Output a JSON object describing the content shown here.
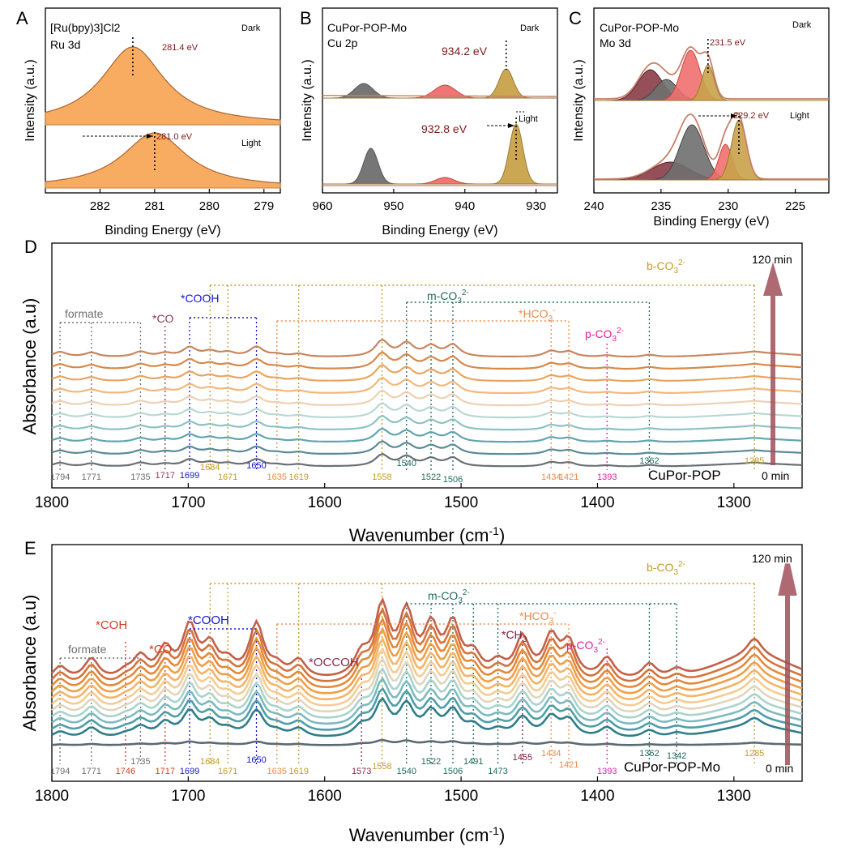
{
  "chart_data": [
    {
      "panel": "A",
      "type": "area",
      "title": "[Ru(bpy)3]Cl2",
      "subtitle": "Ru 3d",
      "xlabel": "Binding Energy (eV)",
      "ylabel": "Intensity (a.u.)",
      "xlim": [
        283.0,
        278.7
      ],
      "xticks": [
        "282",
        "281",
        "280",
        "279"
      ],
      "states": [
        {
          "name": "Dark",
          "peak": 281.4,
          "peak_label": "281.4 eV"
        },
        {
          "name": "Light",
          "peak": 281.0,
          "peak_label": "281.0 eV"
        }
      ],
      "colors": {
        "fill": "#f7a85a",
        "line": "#c5804b"
      }
    },
    {
      "panel": "B",
      "type": "area",
      "title": "CuPor-POP-Mo",
      "subtitle": "Cu 2p",
      "xlabel": "Binding Energy (eV)",
      "ylabel": "Intensity (a.u.)",
      "xlim": [
        960,
        927
      ],
      "xticks": [
        "960",
        "950",
        "940",
        "930"
      ],
      "states": [
        {
          "name": "Dark",
          "peaks": [
            954.2,
            942.8,
            934.2
          ],
          "peak_label": "934.2 eV"
        },
        {
          "name": "Light",
          "peaks": [
            953.2,
            942.8,
            932.8
          ],
          "peak_label": "932.8 eV"
        }
      ],
      "colors": {
        "gray": "#6f6f6f",
        "red": "#ef6f6f",
        "gold": "#c9a24a"
      }
    },
    {
      "panel": "C",
      "type": "area",
      "title": "CuPor-POP-Mo",
      "subtitle": "Mo 3d",
      "xlabel": "Binding Energy (eV)",
      "ylabel": "Intensity (a.u.)",
      "xlim": [
        240,
        222.5
      ],
      "xticks": [
        "240",
        "235",
        "230",
        "225"
      ],
      "states": [
        {
          "name": "Dark",
          "peaks": [
            235.8,
            234.6,
            232.8,
            231.5
          ],
          "peak_label": "231.5 eV"
        },
        {
          "name": "Light",
          "peaks": [
            234.3,
            232.7,
            230.2,
            229.2
          ],
          "peak_label": "229.2 eV"
        }
      ],
      "colors": {
        "maroon": "#8a3c47",
        "gray": "#6f6f6f",
        "red": "#ef6f6f",
        "gold": "#c9a24a",
        "envelope": "#c5806a"
      }
    },
    {
      "panel": "D",
      "type": "line",
      "sample": "CuPor-POP",
      "xlabel": "Wavenumber (cm",
      "xlabel_sup": "-1",
      "xlabel_end": ")",
      "ylabel": "Absorbance (a.u)",
      "xlim": [
        1800,
        1250
      ],
      "xticks": [
        "1800",
        "1700",
        "1600",
        "1500",
        "1400",
        "1300"
      ],
      "time_start": "0 min",
      "time_end": "120 min",
      "n_series": 10,
      "peaks": [
        1794,
        1771,
        1735,
        1717,
        1699,
        1684,
        1671,
        1650,
        1635,
        1619,
        1558,
        1540,
        1522,
        1506,
        1434,
        1421,
        1393,
        1362,
        1285
      ],
      "groups": [
        {
          "name": "formate",
          "peaks": [
            1794,
            1771,
            1735
          ],
          "color": "#6f6f6f"
        },
        {
          "name": "*CO",
          "peaks": [
            1717
          ],
          "color": "#8a3c55"
        },
        {
          "name": "*COOH",
          "peaks": [
            1699,
            1650
          ],
          "color": "#1515d0"
        },
        {
          "name": "b-CO",
          "sub": "3",
          "sup": "2-",
          "peaks": [
            1684,
            1671,
            1619,
            1558,
            1285
          ],
          "color": "#c49a2a"
        },
        {
          "name": "m-CO",
          "sub": "3",
          "sup": "2-",
          "peaks": [
            1540,
            1522,
            1506,
            1362
          ],
          "color": "#1f6a5a"
        },
        {
          "name": "*HCO",
          "sub": "3",
          "sup": "-",
          "peaks": [
            1635,
            1434,
            1421
          ],
          "color": "#f08a4b"
        },
        {
          "name": "p-CO",
          "sub": "3",
          "sup": "2-",
          "peaks": [
            1393
          ],
          "color": "#e020a0"
        }
      ]
    },
    {
      "panel": "E",
      "type": "line",
      "sample": "CuPor-POP-Mo",
      "xlabel": "Wavenumber (cm",
      "xlabel_sup": "-1",
      "xlabel_end": ")",
      "ylabel": "Absorbance (a.u)",
      "xlim": [
        1800,
        1250
      ],
      "xticks": [
        "1800",
        "1700",
        "1600",
        "1500",
        "1400",
        "1300"
      ],
      "time_start": "0 min",
      "time_end": "120 min",
      "n_series": 12,
      "peaks": [
        1794,
        1771,
        1746,
        1735,
        1717,
        1699,
        1684,
        1671,
        1650,
        1635,
        1619,
        1573,
        1558,
        1540,
        1522,
        1506,
        1491,
        1473,
        1455,
        1434,
        1421,
        1393,
        1362,
        1342,
        1285
      ],
      "groups": [
        {
          "name": "formate",
          "peaks": [
            1794,
            1771,
            1735
          ],
          "color": "#6f6f6f"
        },
        {
          "name": "*COH",
          "peaks": [
            1746
          ],
          "color": "#d0402a"
        },
        {
          "name": "*CO",
          "peaks": [
            1717
          ],
          "color": "#d0402a"
        },
        {
          "name": "*COOH",
          "peaks": [
            1699,
            1650
          ],
          "color": "#1515d0"
        },
        {
          "name": "*OCCOH",
          "peaks": [
            1573
          ],
          "color": "#8a2c4a"
        },
        {
          "name": "*CH",
          "sub": "3",
          "peaks": [
            1455
          ],
          "color": "#7a1a3a"
        },
        {
          "name": "b-CO",
          "sub": "3",
          "sup": "2-",
          "peaks": [
            1684,
            1671,
            1619,
            1558,
            1285
          ],
          "color": "#c49a2a"
        },
        {
          "name": "m-CO",
          "sub": "3",
          "sup": "2-",
          "peaks": [
            1540,
            1522,
            1506,
            1491,
            1473,
            1362,
            1342
          ],
          "color": "#1f6a5a"
        },
        {
          "name": "*HCO",
          "sub": "3",
          "sup": "-",
          "peaks": [
            1635,
            1434,
            1421
          ],
          "color": "#f08a4b"
        },
        {
          "name": "p-CO",
          "sub": "3",
          "sup": "2-",
          "peaks": [
            1393
          ],
          "color": "#e020a0"
        }
      ]
    }
  ],
  "labels": {
    "dark": "Dark",
    "light": "Light",
    "pA": "A",
    "pB": "B",
    "pC": "C",
    "pD": "D",
    "pE": "E"
  },
  "peak_text": {
    "d_formate": "formate",
    "d_co": "*CO",
    "d_cooh": "*COOH",
    "e_formate": "formate",
    "e_coh": "*COH",
    "e_co": "*CO",
    "e_cooh": "*COOH",
    "e_occoh": "*OCCOH"
  }
}
